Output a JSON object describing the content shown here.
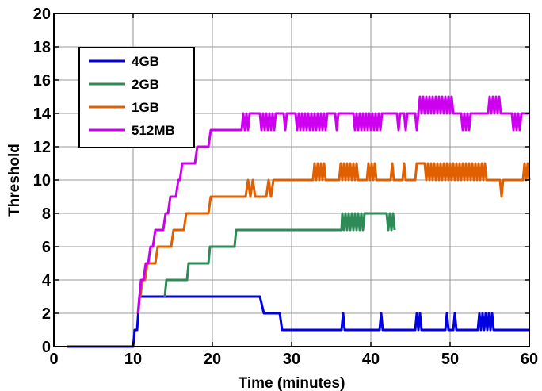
{
  "chart_data": {
    "type": "line",
    "title": "",
    "xlabel": "Time (minutes)",
    "ylabel": "Threshold",
    "xlim": [
      0,
      60
    ],
    "ylim": [
      0,
      20
    ],
    "xticks": [
      0,
      10,
      20,
      30,
      40,
      50,
      60
    ],
    "yticks": [
      0,
      2,
      4,
      6,
      8,
      10,
      12,
      14,
      16,
      18,
      20
    ],
    "grid": true,
    "legend_position": "upper-left",
    "series": [
      {
        "name": "4GB",
        "color": "#0000e0",
        "points": [
          [
            1.7,
            0
          ],
          [
            10.0,
            0
          ],
          [
            10.2,
            1
          ],
          [
            10.5,
            1
          ],
          [
            10.8,
            3
          ],
          [
            14.0,
            3
          ],
          [
            26.0,
            3
          ],
          [
            26.5,
            2
          ],
          [
            28.5,
            2
          ],
          [
            28.8,
            1
          ],
          [
            36.3,
            1
          ],
          [
            36.5,
            2
          ],
          [
            36.7,
            1
          ],
          [
            41.1,
            1
          ],
          [
            41.3,
            2
          ],
          [
            41.5,
            1
          ],
          [
            45.6,
            1
          ],
          [
            45.8,
            2
          ],
          [
            46.0,
            1
          ],
          [
            46.2,
            2
          ],
          [
            46.4,
            1
          ],
          [
            49.4,
            1
          ],
          [
            49.6,
            2
          ],
          [
            49.8,
            1
          ],
          [
            50.4,
            1
          ],
          [
            50.6,
            2
          ],
          [
            50.8,
            1
          ],
          [
            53.5,
            1
          ],
          [
            53.7,
            2
          ],
          [
            53.9,
            1
          ],
          [
            54.1,
            2
          ],
          [
            54.3,
            1
          ],
          [
            54.5,
            2
          ],
          [
            54.7,
            1
          ],
          [
            54.9,
            2
          ],
          [
            55.1,
            1
          ],
          [
            55.3,
            2
          ],
          [
            55.5,
            1
          ],
          [
            60,
            1
          ]
        ]
      },
      {
        "name": "2GB",
        "color": "#2e8b57",
        "points": [
          [
            14.0,
            3
          ],
          [
            14.2,
            4
          ],
          [
            16.8,
            4
          ],
          [
            17.0,
            5
          ],
          [
            19.5,
            5
          ],
          [
            19.7,
            6
          ],
          [
            22.8,
            6
          ],
          [
            23.0,
            7
          ],
          [
            36.3,
            7
          ],
          [
            36.4,
            8
          ],
          [
            36.6,
            7
          ],
          [
            36.8,
            8
          ],
          [
            37.0,
            7
          ],
          [
            37.2,
            8
          ],
          [
            37.4,
            7
          ],
          [
            37.6,
            8
          ],
          [
            37.8,
            7
          ],
          [
            38.0,
            8
          ],
          [
            38.2,
            7
          ],
          [
            38.4,
            8
          ],
          [
            38.6,
            7
          ],
          [
            38.8,
            8
          ],
          [
            39.0,
            7
          ],
          [
            39.2,
            8
          ],
          [
            42.0,
            8
          ],
          [
            42.2,
            7
          ],
          [
            42.4,
            8
          ],
          [
            42.6,
            7
          ],
          [
            42.8,
            8
          ],
          [
            43.0,
            7
          ]
        ]
      },
      {
        "name": "1GB",
        "color": "#e06000",
        "points": [
          [
            10.9,
            3
          ],
          [
            11.2,
            4
          ],
          [
            11.5,
            4
          ],
          [
            11.8,
            5
          ],
          [
            12.8,
            5
          ],
          [
            13.1,
            6
          ],
          [
            14.8,
            6
          ],
          [
            15.1,
            7
          ],
          [
            16.4,
            7
          ],
          [
            16.7,
            8
          ],
          [
            19.5,
            8
          ],
          [
            19.8,
            9
          ],
          [
            24.2,
            9
          ],
          [
            24.5,
            10
          ],
          [
            24.8,
            9
          ],
          [
            25.1,
            10
          ],
          [
            25.4,
            9
          ],
          [
            26.8,
            9
          ],
          [
            27.1,
            10
          ],
          [
            27.4,
            9
          ],
          [
            27.7,
            10
          ],
          [
            32.7,
            10
          ],
          [
            32.9,
            11
          ],
          [
            33.1,
            10
          ],
          [
            33.3,
            11
          ],
          [
            33.5,
            10
          ],
          [
            33.7,
            11
          ],
          [
            33.9,
            10
          ],
          [
            34.1,
            11
          ],
          [
            34.3,
            10
          ],
          [
            36.0,
            10
          ],
          [
            36.2,
            11
          ],
          [
            36.4,
            10
          ],
          [
            36.6,
            11
          ],
          [
            36.8,
            10
          ],
          [
            37.0,
            11
          ],
          [
            37.2,
            10
          ],
          [
            37.4,
            11
          ],
          [
            37.6,
            10
          ],
          [
            37.8,
            11
          ],
          [
            38.0,
            10
          ],
          [
            38.2,
            11
          ],
          [
            38.4,
            10
          ],
          [
            39.5,
            10
          ],
          [
            39.7,
            11
          ],
          [
            39.9,
            10
          ],
          [
            40.1,
            11
          ],
          [
            40.3,
            10
          ],
          [
            40.5,
            11
          ],
          [
            40.7,
            10
          ],
          [
            42.5,
            10
          ],
          [
            42.7,
            11
          ],
          [
            42.9,
            10
          ],
          [
            44.0,
            10
          ],
          [
            44.2,
            11
          ],
          [
            44.4,
            10
          ],
          [
            45.6,
            10
          ],
          [
            45.8,
            11
          ],
          [
            46.8,
            11
          ],
          [
            47.0,
            10
          ],
          [
            47.2,
            11
          ],
          [
            47.4,
            10
          ],
          [
            47.6,
            11
          ],
          [
            47.8,
            10
          ],
          [
            48.0,
            11
          ],
          [
            48.2,
            10
          ],
          [
            48.4,
            11
          ],
          [
            48.6,
            10
          ],
          [
            48.8,
            11
          ],
          [
            49.0,
            10
          ],
          [
            49.2,
            11
          ],
          [
            49.4,
            10
          ],
          [
            49.6,
            11
          ],
          [
            49.8,
            10
          ],
          [
            50.0,
            11
          ],
          [
            50.2,
            10
          ],
          [
            50.4,
            11
          ],
          [
            50.6,
            10
          ],
          [
            50.8,
            11
          ],
          [
            51.0,
            10
          ],
          [
            51.2,
            11
          ],
          [
            51.4,
            10
          ],
          [
            51.6,
            11
          ],
          [
            51.8,
            10
          ],
          [
            52.0,
            11
          ],
          [
            52.2,
            10
          ],
          [
            52.4,
            11
          ],
          [
            52.6,
            10
          ],
          [
            52.8,
            11
          ],
          [
            53.0,
            10
          ],
          [
            53.2,
            11
          ],
          [
            53.4,
            10
          ],
          [
            53.6,
            11
          ],
          [
            53.8,
            10
          ],
          [
            54.0,
            11
          ],
          [
            54.2,
            10
          ],
          [
            54.4,
            11
          ],
          [
            54.6,
            10
          ],
          [
            56.3,
            10
          ],
          [
            56.5,
            9
          ],
          [
            56.7,
            10
          ],
          [
            59.2,
            10
          ],
          [
            59.4,
            11
          ],
          [
            59.6,
            10
          ],
          [
            59.8,
            11
          ],
          [
            60,
            10
          ]
        ]
      },
      {
        "name": "512MB",
        "color": "#cc00ee",
        "points": [
          [
            10.6,
            2
          ],
          [
            11.0,
            4
          ],
          [
            11.3,
            4
          ],
          [
            11.6,
            5
          ],
          [
            11.9,
            5
          ],
          [
            12.2,
            6
          ],
          [
            12.5,
            6
          ],
          [
            12.8,
            7
          ],
          [
            13.8,
            7
          ],
          [
            14.1,
            8
          ],
          [
            14.4,
            8
          ],
          [
            14.7,
            9
          ],
          [
            15.4,
            9
          ],
          [
            15.7,
            10
          ],
          [
            15.9,
            10
          ],
          [
            16.2,
            11
          ],
          [
            17.8,
            11
          ],
          [
            18.1,
            12
          ],
          [
            19.5,
            12
          ],
          [
            19.8,
            13
          ],
          [
            23.7,
            13
          ],
          [
            23.9,
            14
          ],
          [
            24.1,
            13
          ],
          [
            24.3,
            14
          ],
          [
            24.5,
            13
          ],
          [
            24.7,
            14
          ],
          [
            26.0,
            14
          ],
          [
            26.2,
            13
          ],
          [
            26.4,
            14
          ],
          [
            26.6,
            13
          ],
          [
            26.8,
            14
          ],
          [
            27.0,
            13
          ],
          [
            27.2,
            14
          ],
          [
            27.4,
            13
          ],
          [
            27.6,
            14
          ],
          [
            27.8,
            13
          ],
          [
            28.0,
            14
          ],
          [
            29.0,
            14
          ],
          [
            29.2,
            13
          ],
          [
            29.4,
            14
          ],
          [
            30.5,
            14
          ],
          [
            30.7,
            13
          ],
          [
            30.9,
            14
          ],
          [
            31.1,
            13
          ],
          [
            31.3,
            14
          ],
          [
            31.5,
            13
          ],
          [
            31.7,
            14
          ],
          [
            31.9,
            13
          ],
          [
            32.1,
            14
          ],
          [
            32.3,
            13
          ],
          [
            32.5,
            14
          ],
          [
            32.7,
            13
          ],
          [
            32.9,
            14
          ],
          [
            33.1,
            13
          ],
          [
            33.3,
            14
          ],
          [
            33.5,
            13
          ],
          [
            33.7,
            14
          ],
          [
            33.9,
            13
          ],
          [
            34.1,
            14
          ],
          [
            34.3,
            13
          ],
          [
            34.5,
            14
          ],
          [
            35.5,
            14
          ],
          [
            35.7,
            13
          ],
          [
            35.9,
            14
          ],
          [
            37.8,
            14
          ],
          [
            38.0,
            13
          ],
          [
            38.2,
            14
          ],
          [
            38.4,
            13
          ],
          [
            38.6,
            14
          ],
          [
            38.8,
            13
          ],
          [
            39.0,
            14
          ],
          [
            39.2,
            13
          ],
          [
            39.4,
            14
          ],
          [
            39.6,
            13
          ],
          [
            39.8,
            14
          ],
          [
            40.0,
            13
          ],
          [
            40.2,
            14
          ],
          [
            40.4,
            13
          ],
          [
            40.6,
            14
          ],
          [
            40.8,
            13
          ],
          [
            41.0,
            14
          ],
          [
            41.2,
            13
          ],
          [
            41.4,
            14
          ],
          [
            43.3,
            14
          ],
          [
            43.5,
            13
          ],
          [
            43.7,
            14
          ],
          [
            44.2,
            14
          ],
          [
            44.4,
            13
          ],
          [
            44.6,
            14
          ],
          [
            45.6,
            14
          ],
          [
            45.8,
            13
          ],
          [
            46.0,
            14
          ],
          [
            46.2,
            15
          ],
          [
            46.4,
            14
          ],
          [
            46.6,
            15
          ],
          [
            46.8,
            14
          ],
          [
            47.0,
            15
          ],
          [
            47.2,
            14
          ],
          [
            47.4,
            15
          ],
          [
            47.6,
            14
          ],
          [
            47.8,
            15
          ],
          [
            48.0,
            14
          ],
          [
            48.2,
            15
          ],
          [
            48.4,
            14
          ],
          [
            48.6,
            15
          ],
          [
            48.8,
            14
          ],
          [
            49.0,
            15
          ],
          [
            49.2,
            14
          ],
          [
            49.4,
            15
          ],
          [
            49.6,
            14
          ],
          [
            49.8,
            15
          ],
          [
            50.0,
            14
          ],
          [
            50.2,
            15
          ],
          [
            50.4,
            14
          ],
          [
            51.4,
            14
          ],
          [
            51.6,
            13
          ],
          [
            51.8,
            14
          ],
          [
            52.0,
            13
          ],
          [
            52.2,
            14
          ],
          [
            52.4,
            13
          ],
          [
            52.6,
            14
          ],
          [
            54.8,
            14
          ],
          [
            55.0,
            15
          ],
          [
            55.2,
            14
          ],
          [
            55.4,
            15
          ],
          [
            55.6,
            14
          ],
          [
            55.8,
            15
          ],
          [
            56.0,
            14
          ],
          [
            56.2,
            15
          ],
          [
            56.4,
            14
          ],
          [
            57.8,
            14
          ],
          [
            58.0,
            13
          ],
          [
            58.2,
            14
          ],
          [
            58.4,
            13
          ],
          [
            58.6,
            14
          ],
          [
            58.8,
            13
          ],
          [
            59.0,
            14
          ],
          [
            60,
            14
          ]
        ]
      }
    ]
  }
}
